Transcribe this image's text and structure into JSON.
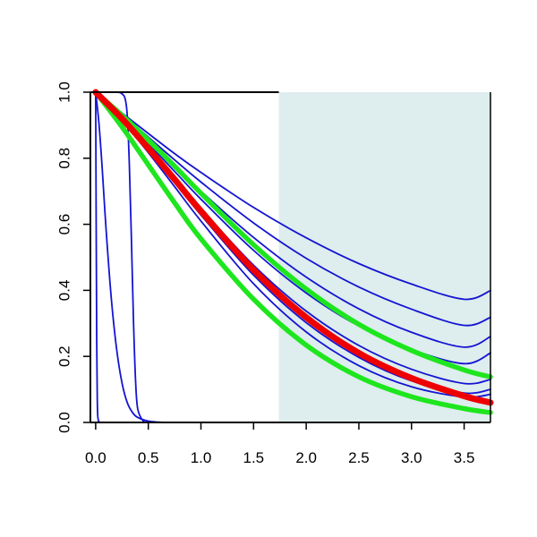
{
  "chart_data": {
    "type": "line",
    "title": "",
    "xlabel": "",
    "ylabel": "",
    "xlim": [
      -0.05,
      3.75
    ],
    "ylim": [
      0,
      1
    ],
    "x_ticks": [
      "0.0",
      "0.5",
      "1.0",
      "1.5",
      "2.0",
      "2.5",
      "3.0",
      "3.5"
    ],
    "y_ticks": [
      "0.0",
      "0.2",
      "0.4",
      "0.6",
      "0.8",
      "1.0"
    ],
    "shaded_region": {
      "x_start": 1.74,
      "x_end": 3.75,
      "color": "#deeded"
    },
    "colors": {
      "blue": "#1414d2",
      "green": "#1ee61e",
      "red": "#ee0000"
    },
    "series": [
      {
        "color": "blue",
        "x": [
          0,
          0.25,
          0.5,
          0.75,
          1.0,
          1.5,
          2.0,
          2.5,
          3.0,
          3.5,
          3.75
        ],
        "y": [
          1.0,
          0.937,
          0.875,
          0.814,
          0.757,
          0.651,
          0.559,
          0.481,
          0.419,
          0.373,
          0.399
        ]
      },
      {
        "color": "blue",
        "x": [
          0,
          0.25,
          0.5,
          0.75,
          1.0,
          1.5,
          2.0,
          2.5,
          3.0,
          3.5,
          3.75
        ],
        "y": [
          1.0,
          0.933,
          0.864,
          0.795,
          0.728,
          0.604,
          0.497,
          0.41,
          0.343,
          0.294,
          0.318
        ]
      },
      {
        "color": "blue",
        "x": [
          0,
          0.25,
          0.5,
          0.75,
          1.0,
          1.5,
          2.0,
          2.5,
          3.0,
          3.5,
          3.75
        ],
        "y": [
          1.0,
          0.929,
          0.853,
          0.776,
          0.7,
          0.56,
          0.44,
          0.344,
          0.273,
          0.228,
          0.26
        ]
      },
      {
        "color": "blue",
        "x": [
          0,
          0.25,
          0.5,
          0.75,
          1.0,
          1.5,
          2.0,
          2.5,
          3.0,
          3.5,
          3.75
        ],
        "y": [
          1.0,
          0.925,
          0.844,
          0.76,
          0.676,
          0.521,
          0.392,
          0.292,
          0.221,
          0.178,
          0.21
        ]
      },
      {
        "color": "blue",
        "x": [
          0,
          0.25,
          0.5,
          0.75,
          1.0,
          1.5,
          2.0,
          2.5,
          3.0,
          3.5,
          3.75
        ],
        "y": [
          1.0,
          0.921,
          0.834,
          0.741,
          0.648,
          0.476,
          0.337,
          0.233,
          0.161,
          0.118,
          0.13
        ]
      },
      {
        "color": "blue",
        "x": [
          0,
          0.25,
          0.5,
          0.75,
          1.0,
          1.5,
          2.0,
          2.5,
          3.0,
          3.5,
          3.75
        ],
        "y": [
          1.0,
          0.917,
          0.825,
          0.727,
          0.628,
          0.446,
          0.302,
          0.197,
          0.126,
          0.089,
          0.1
        ]
      },
      {
        "color": "blue",
        "x": [
          0,
          0.25,
          0.5,
          0.75,
          1.0,
          1.5,
          2.0,
          2.5,
          3.0,
          3.5,
          3.75
        ],
        "y": [
          1.0,
          0.914,
          0.817,
          0.714,
          0.61,
          0.42,
          0.274,
          0.172,
          0.108,
          0.077,
          0.085
        ]
      },
      {
        "color": "blue",
        "x": [
          0,
          0.03,
          0.06,
          0.1,
          0.15,
          0.2,
          0.25,
          0.3,
          0.35,
          0.4,
          0.5,
          0.6,
          0.7,
          0.8
        ],
        "y": [
          1.0,
          0.91,
          0.78,
          0.58,
          0.37,
          0.22,
          0.12,
          0.06,
          0.03,
          0.015,
          0.004,
          0.001,
          0.0,
          0.0
        ]
      },
      {
        "color": "blue",
        "x": [
          0,
          0.2,
          0.25,
          0.28,
          0.3,
          0.32,
          0.34,
          0.36,
          0.38,
          0.4,
          0.45,
          0.5
        ],
        "y": [
          1.0,
          1.0,
          0.995,
          0.98,
          0.93,
          0.78,
          0.55,
          0.3,
          0.12,
          0.04,
          0.005,
          0.0
        ]
      },
      {
        "color": "blue",
        "x": [
          0,
          0.005,
          0.01,
          0.015,
          0.02,
          0.03,
          0.05,
          0.08,
          0.12
        ],
        "y": [
          1.0,
          0.6,
          0.25,
          0.08,
          0.02,
          0.003,
          0.0,
          0.0,
          0.0
        ]
      },
      {
        "color": "green",
        "x": [
          0,
          0.25,
          0.5,
          0.75,
          1.0,
          1.5,
          2.0,
          2.5,
          3.0,
          3.5,
          3.75
        ],
        "y": [
          1.0,
          0.93,
          0.855,
          0.776,
          0.694,
          0.538,
          0.404,
          0.297,
          0.218,
          0.159,
          0.138
        ]
      },
      {
        "color": "green",
        "x": [
          0,
          0.25,
          0.5,
          0.75,
          1.0,
          1.5,
          2.0,
          2.5,
          3.0,
          3.5,
          3.75
        ],
        "y": [
          1.0,
          0.895,
          0.78,
          0.665,
          0.556,
          0.373,
          0.234,
          0.138,
          0.078,
          0.042,
          0.03
        ]
      },
      {
        "color": "red",
        "x": [
          0,
          0.25,
          0.5,
          0.75,
          1.0,
          1.5,
          2.0,
          2.5,
          3.0,
          3.5,
          3.75
        ],
        "y": [
          1.0,
          0.92,
          0.83,
          0.736,
          0.64,
          0.462,
          0.318,
          0.21,
          0.134,
          0.08,
          0.06
        ]
      }
    ]
  }
}
